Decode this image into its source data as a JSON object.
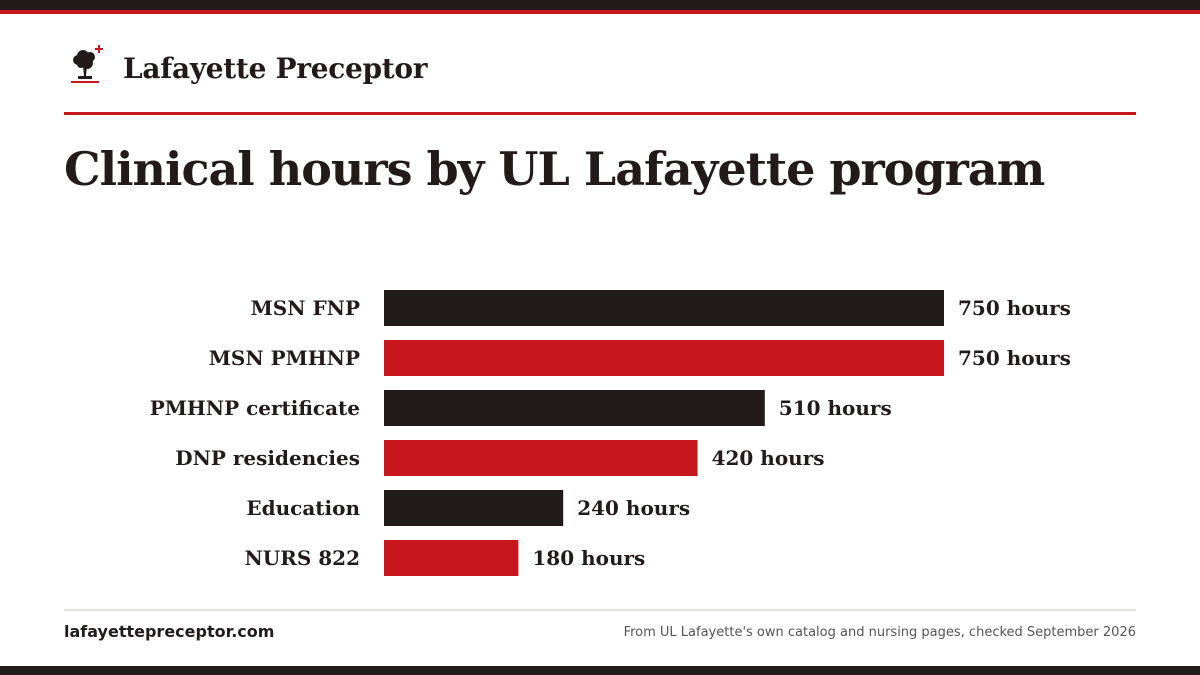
{
  "brand": {
    "name": "Lafayette Preceptor",
    "colors": {
      "dark": "#231b1b",
      "red": "#c8161d",
      "rule": "#e6e2da"
    },
    "logo_icon": "tree-with-cross-icon"
  },
  "chart_data": {
    "type": "bar",
    "orientation": "horizontal",
    "title": "Clinical hours by UL Lafayette program",
    "categories": [
      "MSN FNP",
      "MSN PMHNP",
      "PMHNP certificate",
      "DNP residencies",
      "Education",
      "NURS 822"
    ],
    "values": [
      750,
      750,
      510,
      420,
      240,
      180
    ],
    "value_labels": [
      "750 hours",
      "750 hours",
      "510 hours",
      "420 hours",
      "240 hours",
      "180 hours"
    ],
    "bar_colors": [
      "#231b1b",
      "#c8161d",
      "#231b1b",
      "#c8161d",
      "#231b1b",
      "#c8161d"
    ],
    "xlim": [
      0,
      750
    ],
    "xlabel": "",
    "ylabel": "",
    "grid": false,
    "legend": "none"
  },
  "footer": {
    "site": "lafayettepreceptor.com",
    "source": "From UL Lafayette's own catalog and nursing pages, checked September 2026"
  }
}
